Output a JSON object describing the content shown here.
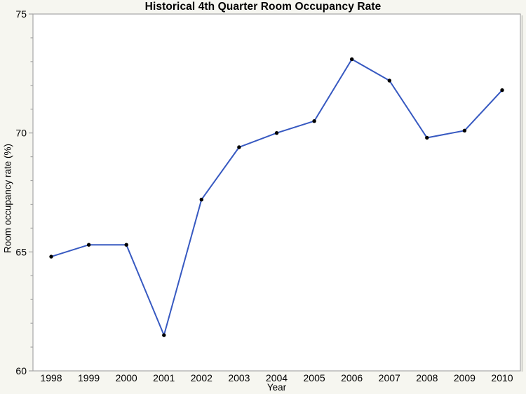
{
  "page": {
    "background_color": "#F6F6F0"
  },
  "chart_data": {
    "type": "line",
    "title": "Historical 4th Quarter Room Occupancy Rate",
    "xlabel": "Year",
    "ylabel": "Room occupancy rate (%)",
    "categories": [
      "1998",
      "1999",
      "2000",
      "2001",
      "2002",
      "2003",
      "2004",
      "2005",
      "2006",
      "2007",
      "2008",
      "2009",
      "2010"
    ],
    "series": [
      {
        "name": "Room occupancy rate",
        "values": [
          64.8,
          65.3,
          65.3,
          61.5,
          67.2,
          69.4,
          70.0,
          70.5,
          73.1,
          72.2,
          69.8,
          70.1,
          71.8
        ]
      }
    ],
    "ylim": [
      60,
      75
    ],
    "y_major_ticks": [
      60,
      65,
      70,
      75
    ],
    "y_minor_step": 1,
    "grid": false,
    "legend_position": "none",
    "line_color": "#3759C1",
    "marker_color": "#000000",
    "marker_shape": "circle",
    "plot_background": "#FFFFFF",
    "axis_color": "#A6A6A6",
    "frame_shadow_color": "#C9C9C2",
    "text_color": "#000000"
  }
}
